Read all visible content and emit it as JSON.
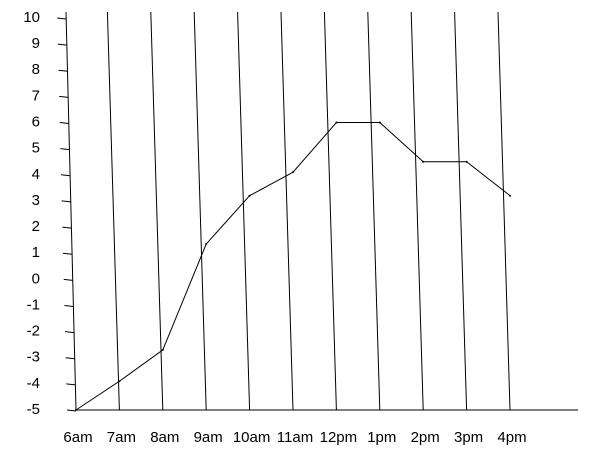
{
  "chart_data": {
    "type": "line",
    "categories": [
      "6am",
      "7am",
      "8am",
      "9am",
      "10am",
      "11am",
      "12pm",
      "1pm",
      "2pm",
      "3pm",
      "4pm"
    ],
    "values": [
      -5,
      -3.9,
      -2.7,
      1.35,
      3.2,
      4.1,
      6,
      6,
      4.5,
      4.5,
      3.2
    ],
    "color": "#000000",
    "ylim": [
      -5,
      10
    ],
    "yticks": [
      -5,
      -4,
      -3,
      -2,
      -1,
      0,
      1,
      2,
      3,
      4,
      5,
      6,
      7,
      8,
      9,
      10
    ],
    "grid": true
  }
}
